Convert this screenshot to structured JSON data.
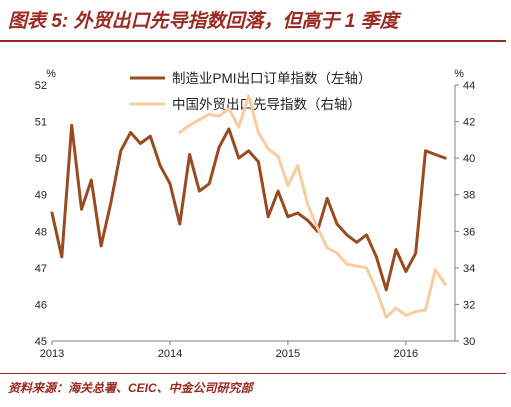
{
  "chart_data": {
    "type": "line",
    "title": "图表 5: 外贸出口先导指数回落，但高于 1 季度",
    "x": [
      "2013-01",
      "2013-02",
      "2013-03",
      "2013-04",
      "2013-05",
      "2013-06",
      "2013-07",
      "2013-08",
      "2013-09",
      "2013-10",
      "2013-11",
      "2013-12",
      "2014-01",
      "2014-02",
      "2014-03",
      "2014-04",
      "2014-05",
      "2014-06",
      "2014-07",
      "2014-08",
      "2014-09",
      "2014-10",
      "2014-11",
      "2014-12",
      "2015-01",
      "2015-02",
      "2015-03",
      "2015-04",
      "2015-05",
      "2015-06",
      "2015-07",
      "2015-08",
      "2015-09",
      "2015-10",
      "2015-11",
      "2015-12",
      "2016-01",
      "2016-02",
      "2016-03",
      "2016-04",
      "2016-05"
    ],
    "xlim": [
      "2013-01",
      "2016-06"
    ],
    "x_tick_labels": [
      "2013",
      "2014",
      "2015",
      "2016"
    ],
    "y_left": {
      "unit": "%",
      "ylim": [
        45,
        52
      ],
      "ticks": [
        45,
        46,
        47,
        48,
        49,
        50,
        51,
        52
      ]
    },
    "y_right": {
      "unit": "%",
      "ylim": [
        30,
        44
      ],
      "ticks": [
        30,
        32,
        34,
        36,
        38,
        40,
        42,
        44
      ]
    },
    "grid": false,
    "legend_position": "top-center",
    "series": [
      {
        "name": "制造业PMI出口订单指数（左轴）",
        "y_axis": "left",
        "color": "#984B22",
        "values": [
          48.5,
          47.3,
          50.9,
          48.6,
          49.4,
          47.6,
          48.8,
          50.2,
          50.7,
          50.4,
          50.6,
          49.8,
          49.3,
          48.2,
          50.1,
          49.1,
          49.3,
          50.3,
          50.8,
          50.0,
          50.2,
          49.9,
          48.4,
          49.1,
          48.4,
          48.5,
          48.3,
          48.0,
          48.9,
          48.2,
          47.9,
          47.7,
          47.9,
          47.3,
          46.4,
          47.5,
          46.9,
          47.4,
          50.2,
          50.1,
          50.0
        ]
      },
      {
        "name": "中国外贸出口先导指数（右轴）",
        "y_axis": "right",
        "color": "#F9CC9F",
        "values": [
          null,
          null,
          null,
          null,
          null,
          null,
          null,
          null,
          null,
          null,
          null,
          null,
          null,
          41.4,
          41.8,
          42.1,
          42.4,
          42.3,
          42.7,
          41.7,
          43.4,
          41.4,
          40.5,
          40.1,
          38.5,
          39.6,
          37.5,
          36.2,
          35.1,
          34.8,
          34.2,
          34.1,
          34.0,
          32.8,
          31.3,
          31.8,
          31.4,
          31.6,
          31.7,
          33.9,
          33.1
        ]
      }
    ]
  },
  "footer": {
    "source": "资料来源：海关总署、CEIC、中金公司研究部"
  },
  "colors": {
    "accent": "#9B2A22",
    "axis": "#7f7f7f",
    "text": "#222222"
  }
}
